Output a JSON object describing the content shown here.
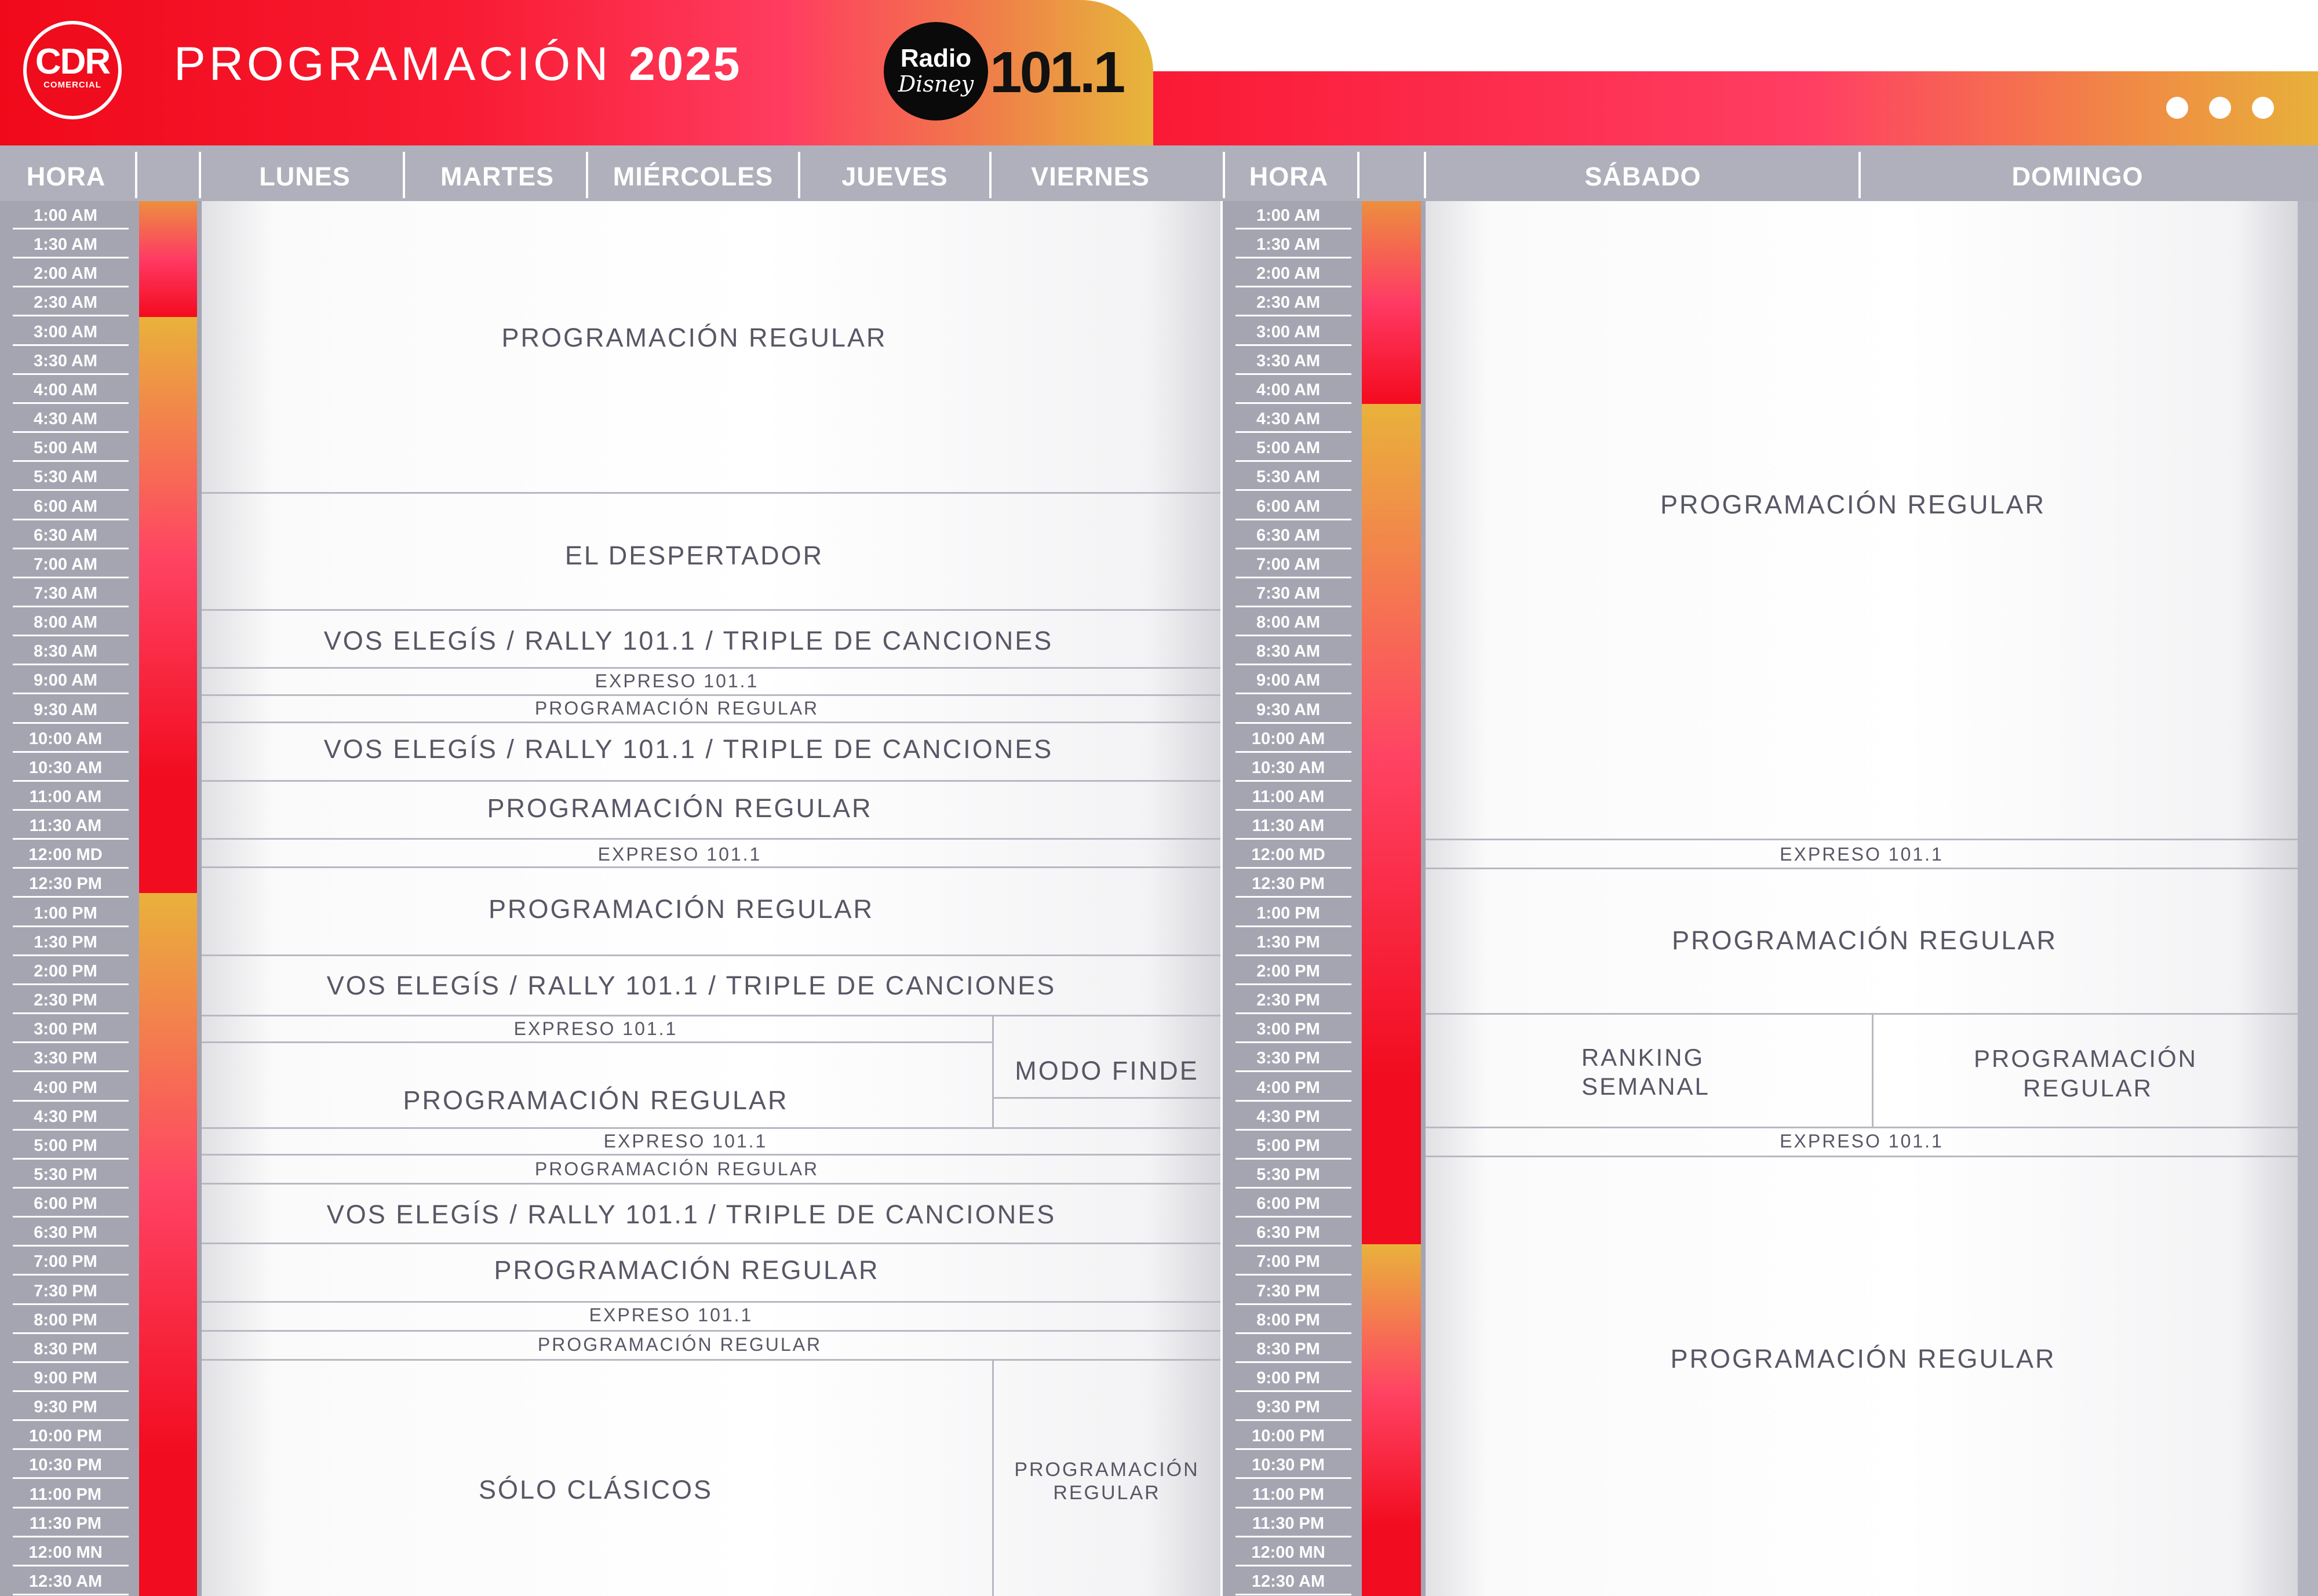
{
  "header": {
    "title": "PROGRAMACIÓN",
    "year": "2025",
    "logo_cdr": "CDR",
    "logo_cdr_sub": "COMERCIAL",
    "logo_radio_line1": "Radio",
    "logo_radio_line2": "Disney",
    "logo_frequency": "101.1",
    "window_dots": [
      "dot",
      "dot",
      "dot"
    ]
  },
  "colors": {
    "brand_red": "#f20c1c",
    "brand_pink": "#ff3e63",
    "brand_gold": "#e8b03a",
    "header_gray": "#b0b0bc",
    "text_gray": "#575766"
  },
  "columns": {
    "hora": "HORA",
    "lunes": "LUNES",
    "martes": "MARTES",
    "miercoles": "MIÉRCOLES",
    "jueves": "JUEVES",
    "viernes": "VIERNES",
    "hora2": "HORA",
    "sabado": "SÁBADO",
    "domingo": "DOMINGO"
  },
  "times": [
    "1:00 AM",
    "1:30 AM",
    "2:00 AM",
    "2:30 AM",
    "3:00 AM",
    "3:30 AM",
    "4:00 AM",
    "4:30 AM",
    "5:00 AM",
    "5:30 AM",
    "6:00 AM",
    "6:30 AM",
    "7:00 AM",
    "7:30 AM",
    "8:00 AM",
    "8:30 AM",
    "9:00 AM",
    "9:30 AM",
    "10:00 AM",
    "10:30 AM",
    "11:00 AM",
    "11:30 AM",
    "12:00 MD",
    "12:30 PM",
    "1:00 PM",
    "1:30 PM",
    "2:00 PM",
    "2:30 PM",
    "3:00 PM",
    "3:30 PM",
    "4:00 PM",
    "4:30 PM",
    "5:00 PM",
    "5:30 PM",
    "6:00 PM",
    "6:30 PM",
    "7:00 PM",
    "7:30 PM",
    "8:00 PM",
    "8:30 PM",
    "9:00 PM",
    "9:30 PM",
    "10:00 PM",
    "10:30 PM",
    "11:00 PM",
    "11:30 PM",
    "12:00 MN",
    "12:30 AM"
  ],
  "weekday": {
    "b1": "PROGRAMACIÓN REGULAR",
    "b2": "EL DESPERTADOR",
    "b3": "VOS ELEGÍS / RALLY 101.1 / TRIPLE DE CANCIONES",
    "b4": "EXPRESO 101.1",
    "b5": "PROGRAMACIÓN REGULAR",
    "b6": "VOS ELEGÍS / RALLY 101.1 / TRIPLE DE CANCIONES",
    "b7": "PROGRAMACIÓN REGULAR",
    "b8": "EXPRESO 101.1",
    "b9": "PROGRAMACIÓN REGULAR",
    "b10": "VOS ELEGÍS / RALLY 101.1 / TRIPLE DE CANCIONES",
    "b11": "EXPRESO 101.1",
    "b12": "PROGRAMACIÓN REGULAR",
    "b12_friday": "MODO FINDE",
    "b13": "EXPRESO 101.1",
    "b14": "PROGRAMACIÓN REGULAR",
    "b15": "VOS ELEGÍS / RALLY 101.1 / TRIPLE DE CANCIONES",
    "b16": "PROGRAMACIÓN REGULAR",
    "b17": "EXPRESO 101.1",
    "b18": "PROGRAMACIÓN REGULAR",
    "b19": "SÓLO CLÁSICOS",
    "b19_friday_1": "PROGRAMACIÓN",
    "b19_friday_2": "REGULAR"
  },
  "weekend": {
    "w1": "PROGRAMACIÓN REGULAR",
    "w2": "EXPRESO 101.1",
    "w3": "PROGRAMACIÓN REGULAR",
    "w4_sat_1": "RANKING",
    "w4_sat_2": "SEMANAL",
    "w4_sun_1": "PROGRAMACIÓN",
    "w4_sun_2": "REGULAR",
    "w5": "EXPRESO 101.1",
    "w6": "PROGRAMACIÓN REGULAR"
  }
}
